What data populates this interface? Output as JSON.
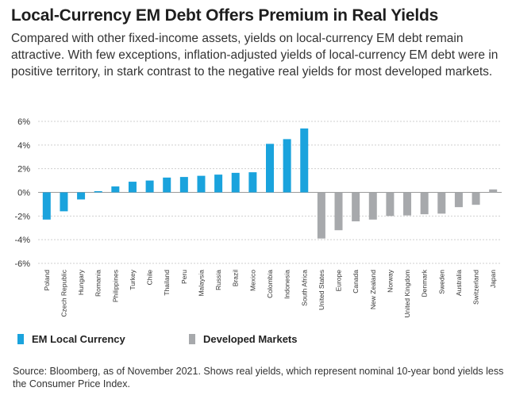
{
  "title": "Local-Currency EM Debt Offers Premium in Real Yields",
  "subtitle": "Compared with other fixed-income assets, yields on local-currency EM debt remain attractive. With few exceptions, inflation-adjusted yields of local-currency EM debt were in positive territory, in stark contrast to the negative real yields for most developed markets.",
  "source": "Source: Bloomberg, as of November 2021. Shows real yields, which represent nominal 10-year bond yields less the Consumer Price Index.",
  "colors": {
    "em": "#1aa3dd",
    "dm": "#a7a9ac",
    "grid": "#cfcfcf"
  },
  "legend": [
    {
      "label": "EM Local Currency",
      "color": "#1aa3dd"
    },
    {
      "label": "Developed Markets",
      "color": "#a7a9ac"
    }
  ],
  "chart_data": {
    "type": "bar",
    "ylim": [
      -6,
      6
    ],
    "yticks": [
      6,
      4,
      2,
      0,
      -2,
      -4,
      -6
    ],
    "ytick_labels": [
      "6%",
      "4%",
      "2%",
      "0%",
      "-2%",
      "-4%",
      "-6%"
    ],
    "grid": true,
    "legend_position": "bottom-left",
    "categories": [
      "Poland",
      "Czech Republic",
      "Hungary",
      "Romania",
      "Philippines",
      "Turkey",
      "Chile",
      "Thailand",
      "Peru",
      "Malaysia",
      "Russia",
      "Brazil",
      "Mexico",
      "Colombia",
      "Indonesia",
      "South Africa",
      "United States",
      "Europe",
      "Canada",
      "New Zealand",
      "Norway",
      "United Kingdom",
      "Denmark",
      "Sweden",
      "Australia",
      "Switzerland",
      "Japan"
    ],
    "values": [
      -2.3,
      -1.6,
      -0.6,
      0.1,
      0.5,
      0.9,
      1.0,
      1.25,
      1.3,
      1.4,
      1.5,
      1.65,
      1.7,
      4.1,
      4.5,
      5.4,
      -3.9,
      -3.2,
      -2.45,
      -2.3,
      -2.0,
      -1.95,
      -1.85,
      -1.8,
      -1.25,
      -1.05,
      0.25
    ],
    "groups": [
      "em",
      "em",
      "em",
      "em",
      "em",
      "em",
      "em",
      "em",
      "em",
      "em",
      "em",
      "em",
      "em",
      "em",
      "em",
      "em",
      "dm",
      "dm",
      "dm",
      "dm",
      "dm",
      "dm",
      "dm",
      "dm",
      "dm",
      "dm",
      "dm"
    ],
    "series": [
      {
        "name": "EM Local Currency",
        "group": "em"
      },
      {
        "name": "Developed Markets",
        "group": "dm"
      }
    ]
  }
}
